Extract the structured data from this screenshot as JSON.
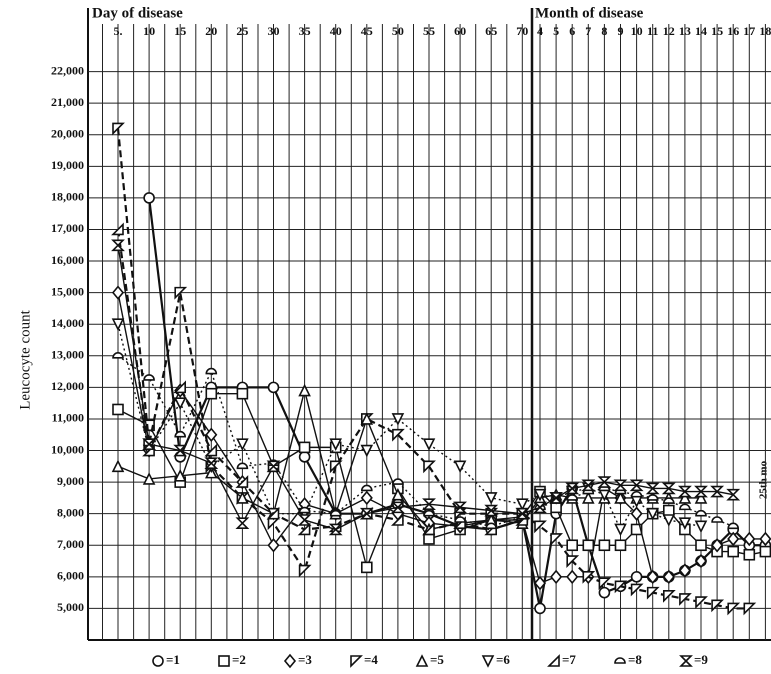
{
  "chart_data": {
    "type": "line",
    "header_left": "Day of disease",
    "header_right": "Month of disease",
    "y_label": "Leucocyte count",
    "annotation": "25th mo",
    "categories": [
      "5.",
      "10",
      "15",
      "20",
      "25",
      "30",
      "35",
      "40",
      "45",
      "50",
      "55",
      "60",
      "65",
      "70",
      "4",
      "5",
      "6",
      "7",
      "8",
      "9",
      "10",
      "11",
      "12",
      "13",
      "14",
      "15",
      "16",
      "17",
      "18"
    ],
    "ylim": [
      4000,
      23000
    ],
    "yticks": [
      {
        "value": 5000,
        "label": "5,000"
      },
      {
        "value": 6000,
        "label": "6,000"
      },
      {
        "value": 7000,
        "label": "7,000"
      },
      {
        "value": 8000,
        "label": "8,000"
      },
      {
        "value": 9000,
        "label": "9,000"
      },
      {
        "value": 10000,
        "label": "10,000"
      },
      {
        "value": 11000,
        "label": "11,000"
      },
      {
        "value": 12000,
        "label": "12,000"
      },
      {
        "value": 13000,
        "label": "13,000"
      },
      {
        "value": 14000,
        "label": "14,000"
      },
      {
        "value": 15000,
        "label": "15,000"
      },
      {
        "value": 16000,
        "label": "16,000"
      },
      {
        "value": 17000,
        "label": "17,000"
      },
      {
        "value": 18000,
        "label": "18,000"
      },
      {
        "value": 19000,
        "label": "19,000"
      },
      {
        "value": 20000,
        "label": "20,000"
      },
      {
        "value": 21000,
        "label": "21,000"
      },
      {
        "value": 22000,
        "label": "22,000"
      }
    ],
    "grid": true,
    "series": [
      {
        "name": "=1",
        "marker": "circle",
        "line_style": "solid",
        "color": "#111111",
        "values": [
          null,
          18000,
          9800,
          12000,
          12000,
          12000,
          9800,
          8000,
          8000,
          8300,
          8000,
          7600,
          7500,
          7800,
          5000,
          8000,
          8800,
          7000,
          5500,
          5700,
          6000,
          6000,
          6000,
          6200,
          6500,
          7000,
          7500,
          7000,
          7000
        ]
      },
      {
        "name": "=2",
        "marker": "square",
        "line_style": "solid",
        "color": "#111111",
        "values": [
          11300,
          10800,
          9000,
          11800,
          11800,
          9500,
          10100,
          10100,
          6300,
          8800,
          7200,
          7500,
          7800,
          7900,
          8700,
          8200,
          7000,
          7000,
          7000,
          7000,
          7500,
          8000,
          8100,
          7500,
          7000,
          6800,
          6800,
          6700,
          6800
        ]
      },
      {
        "name": "=3",
        "marker": "diamond",
        "line_style": "solid",
        "color": "#111111",
        "values": [
          15000,
          10000,
          11900,
          10500,
          9000,
          7000,
          8300,
          8000,
          8500,
          8000,
          7700,
          7600,
          7800,
          7800,
          5800,
          6000,
          6000,
          6000,
          8800,
          8500,
          8000,
          6000,
          6000,
          6200,
          6500,
          7000,
          7200,
          7200,
          7200
        ]
      },
      {
        "name": "=4",
        "marker": "tri-left",
        "line_style": "dashed",
        "color": "#111111",
        "values": [
          20200,
          10200,
          15000,
          9500,
          8500,
          7700,
          6200,
          9500,
          11000,
          10500,
          9500,
          8000,
          8000,
          8000,
          7600,
          7200,
          6500,
          6000,
          5800,
          5700,
          5600,
          5500,
          5400,
          5300,
          5200,
          5100,
          5000,
          5000,
          null
        ]
      },
      {
        "name": "=5",
        "marker": "triangle",
        "line_style": "solid",
        "color": "#111111",
        "values": [
          9500,
          9100,
          9200,
          9300,
          8500,
          8000,
          11900,
          8000,
          11000,
          8600,
          7500,
          7700,
          7800,
          7700,
          8500,
          8600,
          8500,
          8500,
          8500,
          8500,
          8500,
          8500,
          8500,
          8500,
          8500,
          null,
          null,
          null,
          null
        ]
      },
      {
        "name": "=6",
        "marker": "tri-down",
        "line_style": "dotted",
        "color": "#111111",
        "values": [
          14000,
          10000,
          11500,
          9500,
          10200,
          8000,
          8000,
          10200,
          10000,
          11000,
          10200,
          9500,
          8500,
          8300,
          8600,
          8500,
          8700,
          8800,
          8600,
          7500,
          8400,
          8000,
          7800,
          7700,
          7600,
          null,
          null,
          null,
          null
        ]
      },
      {
        "name": "=7",
        "marker": "tri-right",
        "line_style": "dashed",
        "color": "#111111",
        "values": [
          17000,
          10000,
          12000,
          10000,
          9000,
          8000,
          7500,
          7600,
          8000,
          7800,
          7500,
          7700,
          7500,
          7800,
          null,
          null,
          null,
          null,
          null,
          null,
          null,
          null,
          null,
          null,
          null,
          null,
          null,
          null,
          null
        ]
      },
      {
        "name": "=8",
        "marker": "semicircle",
        "line_style": "dotted",
        "color": "#111111",
        "values": [
          13000,
          12300,
          10500,
          12500,
          9500,
          9600,
          8100,
          8000,
          8800,
          9000,
          8000,
          7800,
          7600,
          7900,
          8200,
          8400,
          8500,
          8700,
          8800,
          8700,
          8600,
          8500,
          8400,
          8200,
          8000,
          7800,
          7600,
          null,
          null
        ]
      },
      {
        "name": "=9",
        "marker": "hourglass",
        "line_style": "solid",
        "color": "#111111",
        "values": [
          16500,
          10200,
          10000,
          9600,
          7700,
          9500,
          7800,
          7500,
          8000,
          8200,
          8300,
          8200,
          8100,
          8000,
          8200,
          8500,
          8800,
          8900,
          9000,
          8900,
          8900,
          8800,
          8800,
          8700,
          8700,
          8700,
          8600,
          null,
          null
        ]
      }
    ]
  }
}
